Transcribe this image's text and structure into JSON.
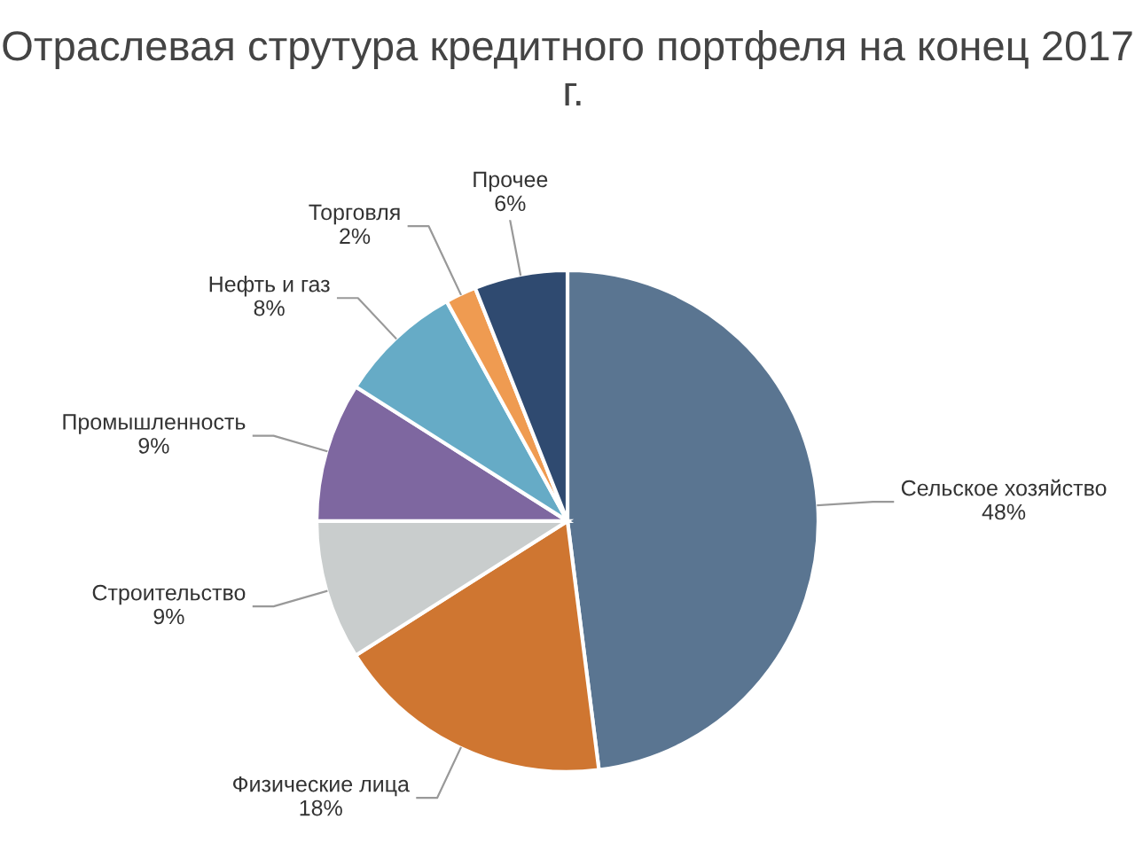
{
  "chart_data": {
    "type": "pie",
    "title": "Отраслевая струтура кредитного портфеля на конец 2017  г.",
    "categories": [
      "Сельское хозяйство",
      "Физические лица",
      "Строительство",
      "Промышленность",
      "Нефть и газ",
      "Торговля",
      "Прочее"
    ],
    "values": [
      48,
      18,
      9,
      9,
      8,
      2,
      6
    ],
    "value_labels": [
      "48%",
      "18%",
      "9%",
      "9%",
      "8%",
      "2%",
      "6%"
    ],
    "colors": [
      "#5a7591",
      "#cf7631",
      "#c9cdcd",
      "#7e67a0",
      "#66abc6",
      "#ef9b51",
      "#2f4a70"
    ],
    "legend": false
  }
}
